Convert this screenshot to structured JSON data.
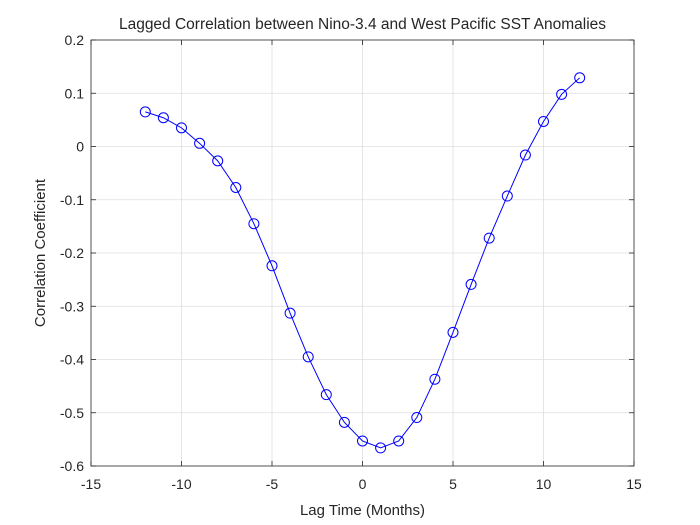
{
  "chart_data": {
    "type": "line",
    "title": "Lagged Correlation between Nino-3.4 and West Pacific SST Anomalies",
    "xlabel": "Lag Time (Months)",
    "ylabel": "Correlation Coefficient",
    "xlim": [
      -15,
      15
    ],
    "ylim": [
      -0.6,
      0.2
    ],
    "xticks": [
      -15,
      -10,
      -5,
      0,
      5,
      10,
      15
    ],
    "yticks": [
      -0.6,
      -0.5,
      -0.4,
      -0.3,
      -0.2,
      -0.1,
      0,
      0.1,
      0.2
    ],
    "xtick_labels": [
      "-15",
      "-10",
      "-5",
      "0",
      "5",
      "10",
      "15"
    ],
    "ytick_labels": [
      "-0.6",
      "-0.5",
      "-0.4",
      "-0.3",
      "-0.2",
      "-0.1",
      "0",
      "0.1",
      "0.2"
    ],
    "grid": true,
    "series": [
      {
        "color": "#0000ff",
        "marker": "circle",
        "x": [
          -12,
          -11,
          -10,
          -9,
          -8,
          -7,
          -6,
          -5,
          -4,
          -3,
          -2,
          -1,
          0,
          1,
          2,
          3,
          4,
          5,
          6,
          7,
          8,
          9,
          10,
          11,
          12
        ],
        "y": [
          0.065,
          0.054,
          0.035,
          0.006,
          -0.027,
          -0.077,
          -0.145,
          -0.224,
          -0.313,
          -0.395,
          -0.466,
          -0.518,
          -0.553,
          -0.566,
          -0.553,
          -0.509,
          -0.437,
          -0.349,
          -0.259,
          -0.172,
          -0.093,
          -0.016,
          0.047,
          0.098,
          0.129
        ]
      }
    ]
  }
}
